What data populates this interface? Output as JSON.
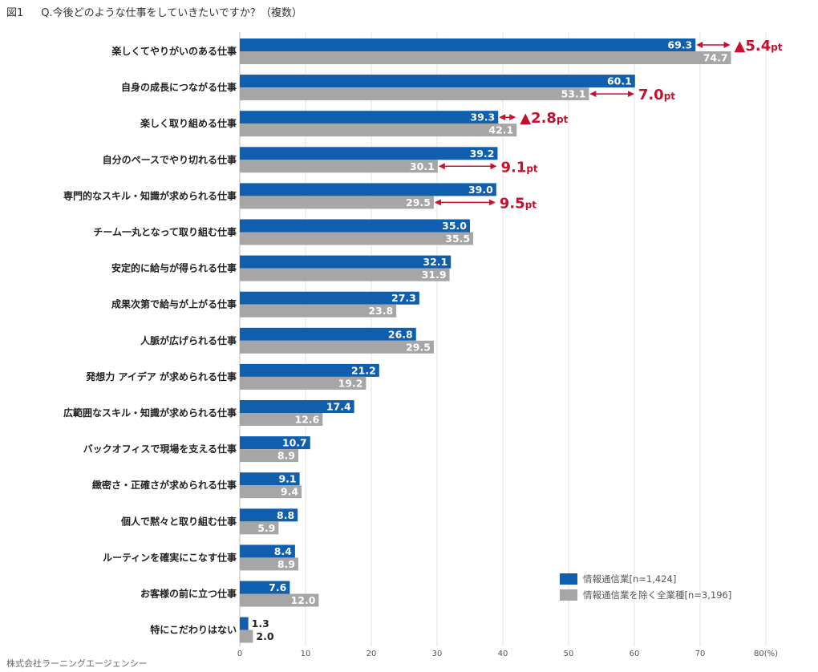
{
  "figure": {
    "number": "図1",
    "question": "Q.今後どのような仕事をしていきたいですか？（複数）",
    "credit": "株式会社ラーニングエージェンシー"
  },
  "chart_data": {
    "type": "bar",
    "orientation": "horizontal",
    "categories": [
      "楽しくてやりがいのある仕事",
      "自身の成長につながる仕事",
      "楽しく取り組める仕事",
      "自分のペースでやり切れる仕事",
      "専門的なスキル・知識が求められる仕事",
      "チーム一丸となって取り組む仕事",
      "安定的に給与が得られる仕事",
      "成果次第で給与が上がる仕事",
      "人脈が広げられる仕事",
      "発想力 アイデア が求められる仕事",
      "広範囲なスキル・知識が求められる仕事",
      "バックオフィスで現場を支える仕事",
      "緻密さ・正確さが求められる仕事",
      "個人で黙々と取り組む仕事",
      "ルーティンを確実にこなす仕事",
      "お客様の前に立つ仕事",
      "特にこだわりはない"
    ],
    "series": [
      {
        "name": "情報通信業[n=1,424]",
        "color": "#0f5fae",
        "values": [
          69.3,
          60.1,
          39.3,
          39.2,
          39.0,
          35.0,
          32.1,
          27.3,
          26.8,
          21.2,
          17.4,
          10.7,
          9.1,
          8.8,
          8.4,
          7.6,
          1.3
        ],
        "labels": [
          "69.3",
          "60.1",
          "39.3",
          "39.2",
          "39.0",
          "35.0",
          "32.1",
          "27.3",
          "26.8",
          "21.2",
          "17.4",
          "10.7",
          "9.1",
          "8.8",
          "8.4",
          "7.6",
          "1.3"
        ]
      },
      {
        "name": "情報通信業を除く全業種[n=3,196]",
        "color": "#a6a6a6",
        "values": [
          74.7,
          53.1,
          42.1,
          30.1,
          29.5,
          35.5,
          31.9,
          23.8,
          29.5,
          19.2,
          12.6,
          8.9,
          9.4,
          5.9,
          8.9,
          12.0,
          2.0
        ],
        "labels": [
          "74.7",
          "53.1",
          "42.1",
          "30.1",
          "29.5",
          "35.5",
          "31.9",
          "23.8",
          "29.5",
          "19.2",
          "12.6",
          "8.9",
          "9.4",
          "5.9",
          "8.9",
          "12.0",
          "2.0"
        ]
      }
    ],
    "xlim": [
      0,
      80
    ],
    "xticks": [
      "0",
      "10",
      "20",
      "30",
      "40",
      "50",
      "60",
      "70",
      "80(%)"
    ],
    "grid": true,
    "legend_position": "bottom-right",
    "annotations": [
      {
        "category_index": 0,
        "number": "▲5.4",
        "unit": "pt",
        "from": 69.3,
        "to": 74.7
      },
      {
        "category_index": 1,
        "number": "7.0",
        "unit": "pt",
        "from": 53.1,
        "to": 60.1
      },
      {
        "category_index": 2,
        "number": "▲2.8",
        "unit": "pt",
        "from": 39.3,
        "to": 42.1
      },
      {
        "category_index": 3,
        "number": "9.1",
        "unit": "pt",
        "from": 30.1,
        "to": 39.2
      },
      {
        "category_index": 4,
        "number": "9.5",
        "unit": "pt",
        "from": 29.5,
        "to": 39.0
      }
    ],
    "annotation_color": "#c8102e"
  }
}
